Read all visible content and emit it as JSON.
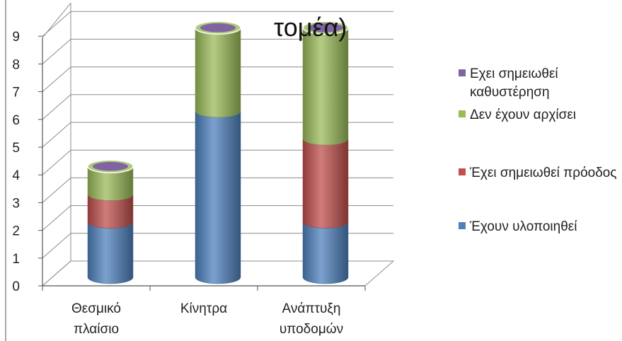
{
  "chart_data": {
    "type": "bar",
    "stacked": true,
    "style": "3d-cylinder",
    "title_visible_line": "τομέα)",
    "categories": [
      [
        "Θεσμικό",
        "πλαίσιο"
      ],
      [
        "Κίνητρα"
      ],
      [
        "Ανάπτυξη",
        "υποδομών"
      ]
    ],
    "series": [
      {
        "name": "Έχουν υλοποιηθεί",
        "color": "#4F81BD",
        "values": [
          2,
          6,
          2
        ]
      },
      {
        "name": "Έχει σημειωθεί πρόοδος",
        "color": "#C0504D",
        "values": [
          1,
          0,
          3
        ]
      },
      {
        "name": "Δεν έχουν αρχίσει",
        "color": "#9BBB59",
        "values": [
          1,
          3,
          4
        ]
      },
      {
        "name": "Εχει σημειωθεί καθυστέρηση",
        "color": "#8064A2",
        "values": [
          0,
          0,
          0
        ]
      }
    ],
    "legend_order": [
      3,
      2,
      1,
      0
    ],
    "legend_position": "right",
    "yticks": [
      "0",
      "1",
      "2",
      "3",
      "4",
      "5",
      "6",
      "7",
      "8",
      "9"
    ],
    "ylim": [
      0,
      9
    ],
    "grid": true
  }
}
